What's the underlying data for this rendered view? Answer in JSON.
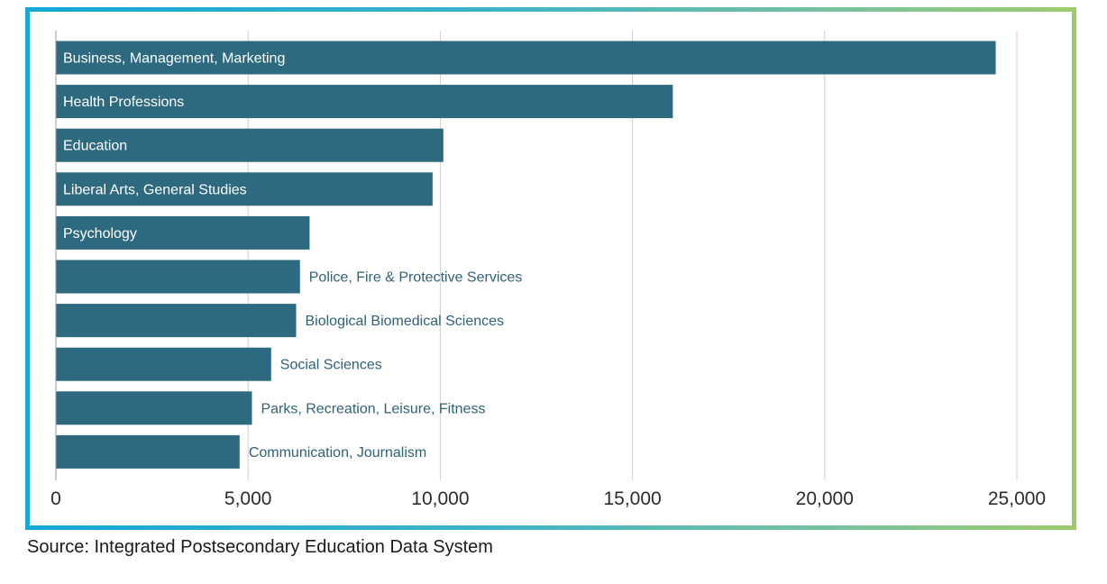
{
  "colors": {
    "bar": "#2d6a80",
    "grid": "#cfcfcf",
    "axis": "#9a9a9a",
    "frame_start": "#14a7d9",
    "frame_end": "#9ccb6b"
  },
  "source": "Source: Integrated Postsecondary Education Data System",
  "chart_data": {
    "type": "bar",
    "orientation": "horizontal",
    "title": "",
    "xlabel": "",
    "ylabel": "",
    "categories": [
      "Business, Management, Marketing",
      "Health Professions",
      "Education",
      "Liberal Arts, General Studies",
      "Psychology",
      "Police, Fire & Protective Services",
      "Biological Biomedical Sciences",
      "Social Sciences",
      "Parks, Recreation, Leisure, Fitness",
      "Communication, Journalism"
    ],
    "values": [
      24450,
      16050,
      10080,
      9800,
      6600,
      6350,
      6250,
      5600,
      5100,
      4780
    ],
    "label_position": [
      "inside",
      "inside",
      "inside",
      "inside",
      "inside",
      "outside",
      "outside",
      "outside",
      "outside",
      "outside"
    ],
    "xlim": [
      0,
      25000
    ],
    "x_ticks": [
      0,
      5000,
      10000,
      15000,
      20000,
      25000
    ],
    "x_tick_labels": [
      "0",
      "5,000",
      "10,000",
      "15,000",
      "20,000",
      "25,000"
    ],
    "grid": true,
    "legend": "none"
  }
}
